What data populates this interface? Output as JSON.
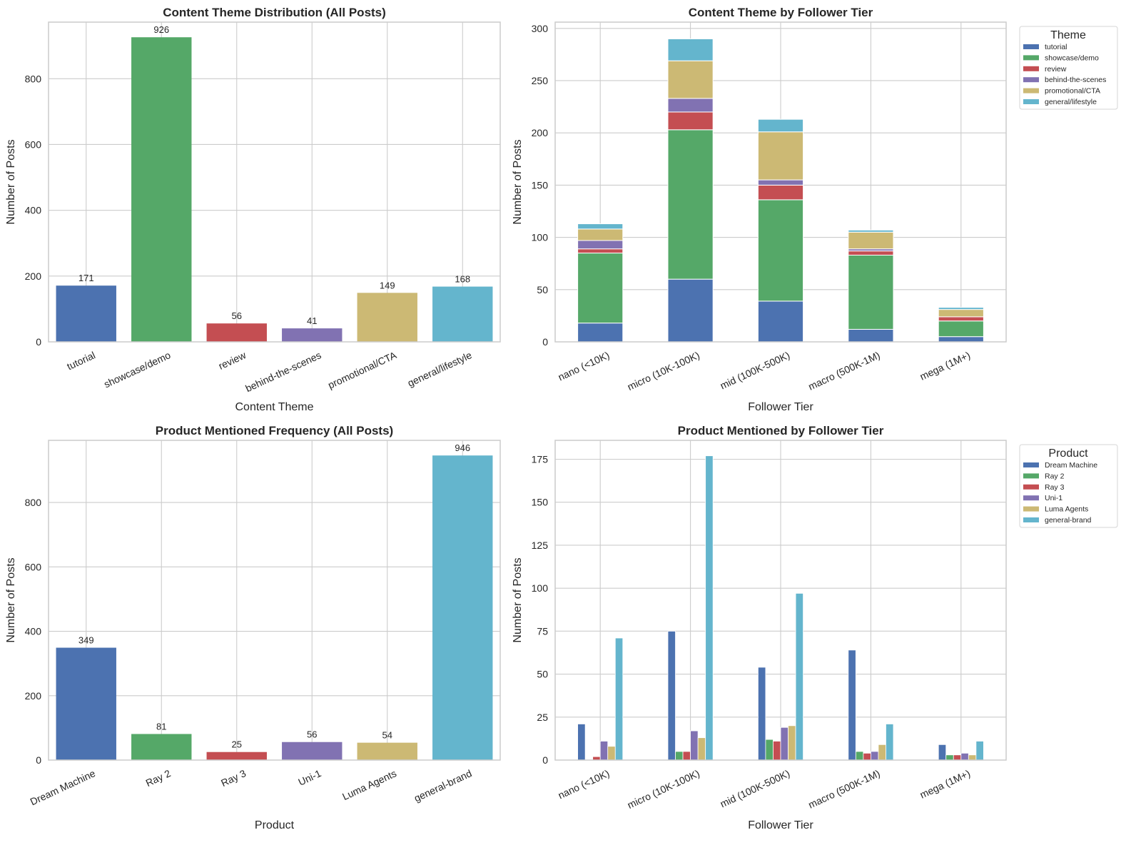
{
  "chart_data": [
    {
      "id": "theme-dist",
      "type": "bar",
      "title": "Content Theme Distribution (All Posts)",
      "xlabel": "Content Theme",
      "ylabel": "Number of Posts",
      "categories": [
        "tutorial",
        "showcase/demo",
        "review",
        "behind-the-scenes",
        "promotional/CTA",
        "general/lifestyle"
      ],
      "values": [
        171,
        926,
        56,
        41,
        149,
        168
      ],
      "data_labels": [
        "171",
        "926",
        "56",
        "41",
        "149",
        "168"
      ],
      "colors": [
        "#4c72b0",
        "#55a868",
        "#c44e52",
        "#8172b2",
        "#ccb974",
        "#64b5cd"
      ],
      "ylim": [
        0,
        972
      ],
      "yticks": [
        0,
        200,
        400,
        600,
        800
      ],
      "grid": true
    },
    {
      "id": "theme-tier",
      "type": "bar",
      "stacked": true,
      "title": "Content Theme by Follower Tier",
      "xlabel": "Follower Tier",
      "ylabel": "Number of Posts",
      "categories": [
        "nano (<10K)",
        "micro (10K-100K)",
        "mid (100K-500K)",
        "macro (500K-1M)",
        "mega (1M+)"
      ],
      "legend_title": "Theme",
      "legend_position": "outside-top-right",
      "series": [
        {
          "name": "tutorial",
          "color": "#4c72b0",
          "values": [
            18,
            60,
            39,
            12,
            5
          ]
        },
        {
          "name": "showcase/demo",
          "color": "#55a868",
          "values": [
            67,
            143,
            97,
            71,
            15
          ]
        },
        {
          "name": "review",
          "color": "#c44e52",
          "values": [
            4,
            17,
            14,
            4,
            4
          ]
        },
        {
          "name": "behind-the-scenes",
          "color": "#8172b2",
          "values": [
            8,
            13,
            5,
            2,
            0
          ]
        },
        {
          "name": "promotional/CTA",
          "color": "#ccb974",
          "values": [
            11,
            36,
            46,
            16,
            7
          ]
        },
        {
          "name": "general/lifestyle",
          "color": "#64b5cd",
          "values": [
            5,
            21,
            12,
            2,
            2
          ]
        }
      ],
      "ylim": [
        0,
        306
      ],
      "yticks": [
        0,
        50,
        100,
        150,
        200,
        250,
        300
      ],
      "grid": true
    },
    {
      "id": "product-freq",
      "type": "bar",
      "title": "Product Mentioned Frequency (All Posts)",
      "xlabel": "Product",
      "ylabel": "Number of Posts",
      "categories": [
        "Dream Machine",
        "Ray 2",
        "Ray 3",
        "Uni-1",
        "Luma Agents",
        "general-brand"
      ],
      "values": [
        349,
        81,
        25,
        56,
        54,
        946
      ],
      "data_labels": [
        "349",
        "81",
        "25",
        "56",
        "54",
        "946"
      ],
      "colors": [
        "#4c72b0",
        "#55a868",
        "#c44e52",
        "#8172b2",
        "#ccb974",
        "#64b5cd"
      ],
      "ylim": [
        0,
        993
      ],
      "yticks": [
        0,
        200,
        400,
        600,
        800
      ],
      "grid": true
    },
    {
      "id": "product-tier",
      "type": "bar",
      "grouped": true,
      "title": "Product Mentioned by Follower Tier",
      "xlabel": "Follower Tier",
      "ylabel": "Number of Posts",
      "categories": [
        "nano (<10K)",
        "micro (10K-100K)",
        "mid (100K-500K)",
        "macro (500K-1M)",
        "mega (1M+)"
      ],
      "legend_title": "Product",
      "legend_position": "outside-top-right",
      "series": [
        {
          "name": "Dream Machine",
          "color": "#4c72b0",
          "values": [
            21,
            75,
            54,
            64,
            9
          ]
        },
        {
          "name": "Ray 2",
          "color": "#55a868",
          "values": [
            0,
            5,
            12,
            5,
            3
          ]
        },
        {
          "name": "Ray 3",
          "color": "#c44e52",
          "values": [
            2,
            5,
            11,
            4,
            3
          ]
        },
        {
          "name": "Uni-1",
          "color": "#8172b2",
          "values": [
            11,
            17,
            19,
            5,
            4
          ]
        },
        {
          "name": "Luma Agents",
          "color": "#ccb974",
          "values": [
            8,
            13,
            20,
            9,
            3
          ]
        },
        {
          "name": "general-brand",
          "color": "#64b5cd",
          "values": [
            71,
            177,
            97,
            21,
            11
          ]
        }
      ],
      "ylim": [
        0,
        186
      ],
      "yticks": [
        0,
        25,
        50,
        75,
        100,
        125,
        150,
        175
      ],
      "grid": true
    }
  ]
}
